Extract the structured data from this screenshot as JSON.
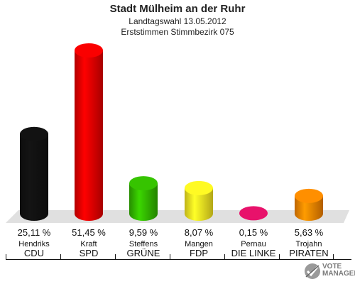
{
  "header": {
    "title": "Stadt Mülheim an der Ruhr",
    "subtitle": "Landtagswahl 13.05.2012",
    "subtitle2": "Erststimmen Stimmbezirk 075"
  },
  "chart_data": {
    "type": "bar",
    "title": "Stadt Mülheim an der Ruhr",
    "categories": [
      "CDU",
      "SPD",
      "GRÜNE",
      "FDP",
      "DIE LINKE",
      "PIRATEN"
    ],
    "candidates": [
      "Hendriks",
      "Kraft",
      "Steffens",
      "Mangen",
      "Pernau",
      "Trojahn"
    ],
    "values": [
      25.11,
      51.45,
      9.59,
      8.07,
      0.15,
      5.63
    ],
    "value_labels": [
      "25,11 %",
      "51,45 %",
      "9,59 %",
      "8,07 %",
      "0,15 %",
      "5,63 %"
    ],
    "colors": [
      "#111111",
      "#ee0000",
      "#33bb00",
      "#ffee22",
      "#dd1166",
      "#ff8800"
    ],
    "ylim": [
      0,
      55
    ],
    "grid": false,
    "legend": "none"
  },
  "logo": {
    "text_line1": "VOTE",
    "text_line2": "MANAGER",
    "icon": "checkmark-ballot-icon"
  }
}
